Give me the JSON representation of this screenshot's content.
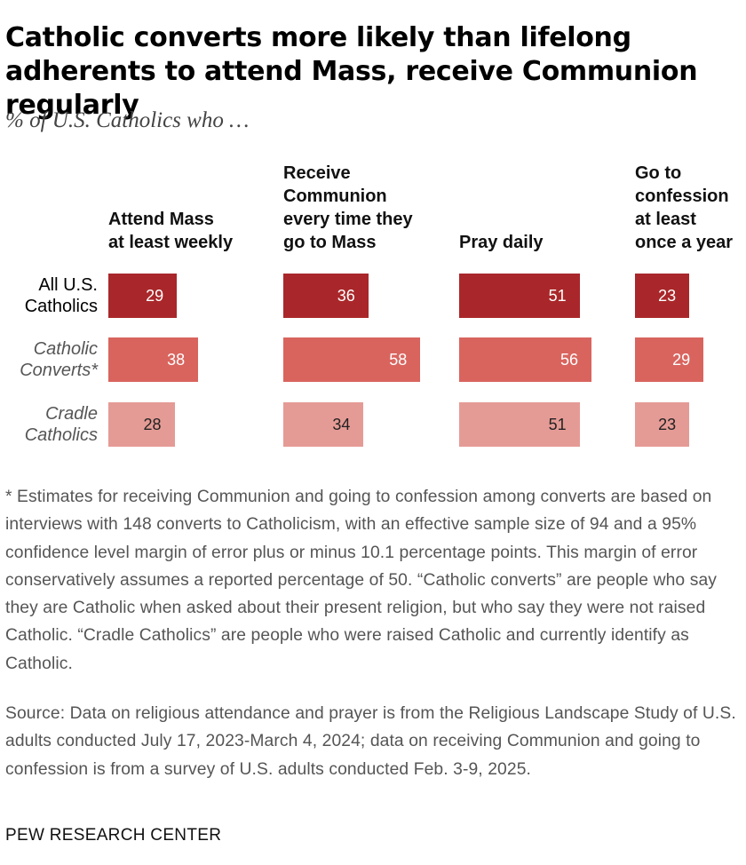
{
  "title": "Catholic converts more likely than lifelong adherents to attend Mass, receive Communion regularly",
  "subtitle": "% of U.S. Catholics who …",
  "colors": {
    "all": "#a9272a",
    "converts": "#d9645e",
    "cradle": "#e59b95",
    "label_light": "#ffffff",
    "label_dark": "#222222"
  },
  "chart_data": {
    "type": "bar",
    "categories": [
      "Attend Mass at least weekly",
      "Receive Communion every time they go to Mass",
      "Pray daily",
      "Go to confession at least once a year"
    ],
    "series": [
      {
        "name": "All U.S. Catholics",
        "values": [
          29,
          36,
          51,
          23
        ]
      },
      {
        "name": "Catholic Converts*",
        "values": [
          38,
          58,
          56,
          29
        ]
      },
      {
        "name": "Cradle Catholics",
        "values": [
          28,
          34,
          51,
          23
        ]
      }
    ]
  },
  "columns": [
    {
      "lines": [
        "Attend Mass",
        "at least weekly"
      ]
    },
    {
      "lines": [
        "Receive",
        "Communion",
        "every time they",
        "go to Mass"
      ]
    },
    {
      "lines": [
        "Pray daily"
      ]
    },
    {
      "lines": [
        "Go to",
        "confession",
        "at least",
        "once a year"
      ]
    }
  ],
  "rows": [
    {
      "lines": [
        "All U.S.",
        "Catholics"
      ],
      "italic": false
    },
    {
      "lines": [
        "Catholic",
        "Converts*"
      ],
      "italic": true
    },
    {
      "lines": [
        "Cradle",
        "Catholics"
      ],
      "italic": true
    }
  ],
  "note": "* Estimates for receiving Communion and going to confession among converts are based on interviews with 148 converts to Catholicism, with an effective sample size of 94 and a 95% confidence level margin of error plus or minus 10.1 percentage points. This margin of error conservatively assumes a reported percentage of 50. “Catholic converts” are people who say they are Catholic when asked about their present religion, but who say they were not raised Catholic. “Cradle Catholics” are people who were raised Catholic and currently identify as Catholic.",
  "source": "Source: Data on religious attendance and prayer is from the Religious Landscape Study of U.S. adults conducted July 17, 2023-March 4, 2024; data on receiving Communion and going to confession is from a survey of U.S. adults conducted Feb. 3-9, 2025.",
  "org": "PEW RESEARCH CENTER"
}
